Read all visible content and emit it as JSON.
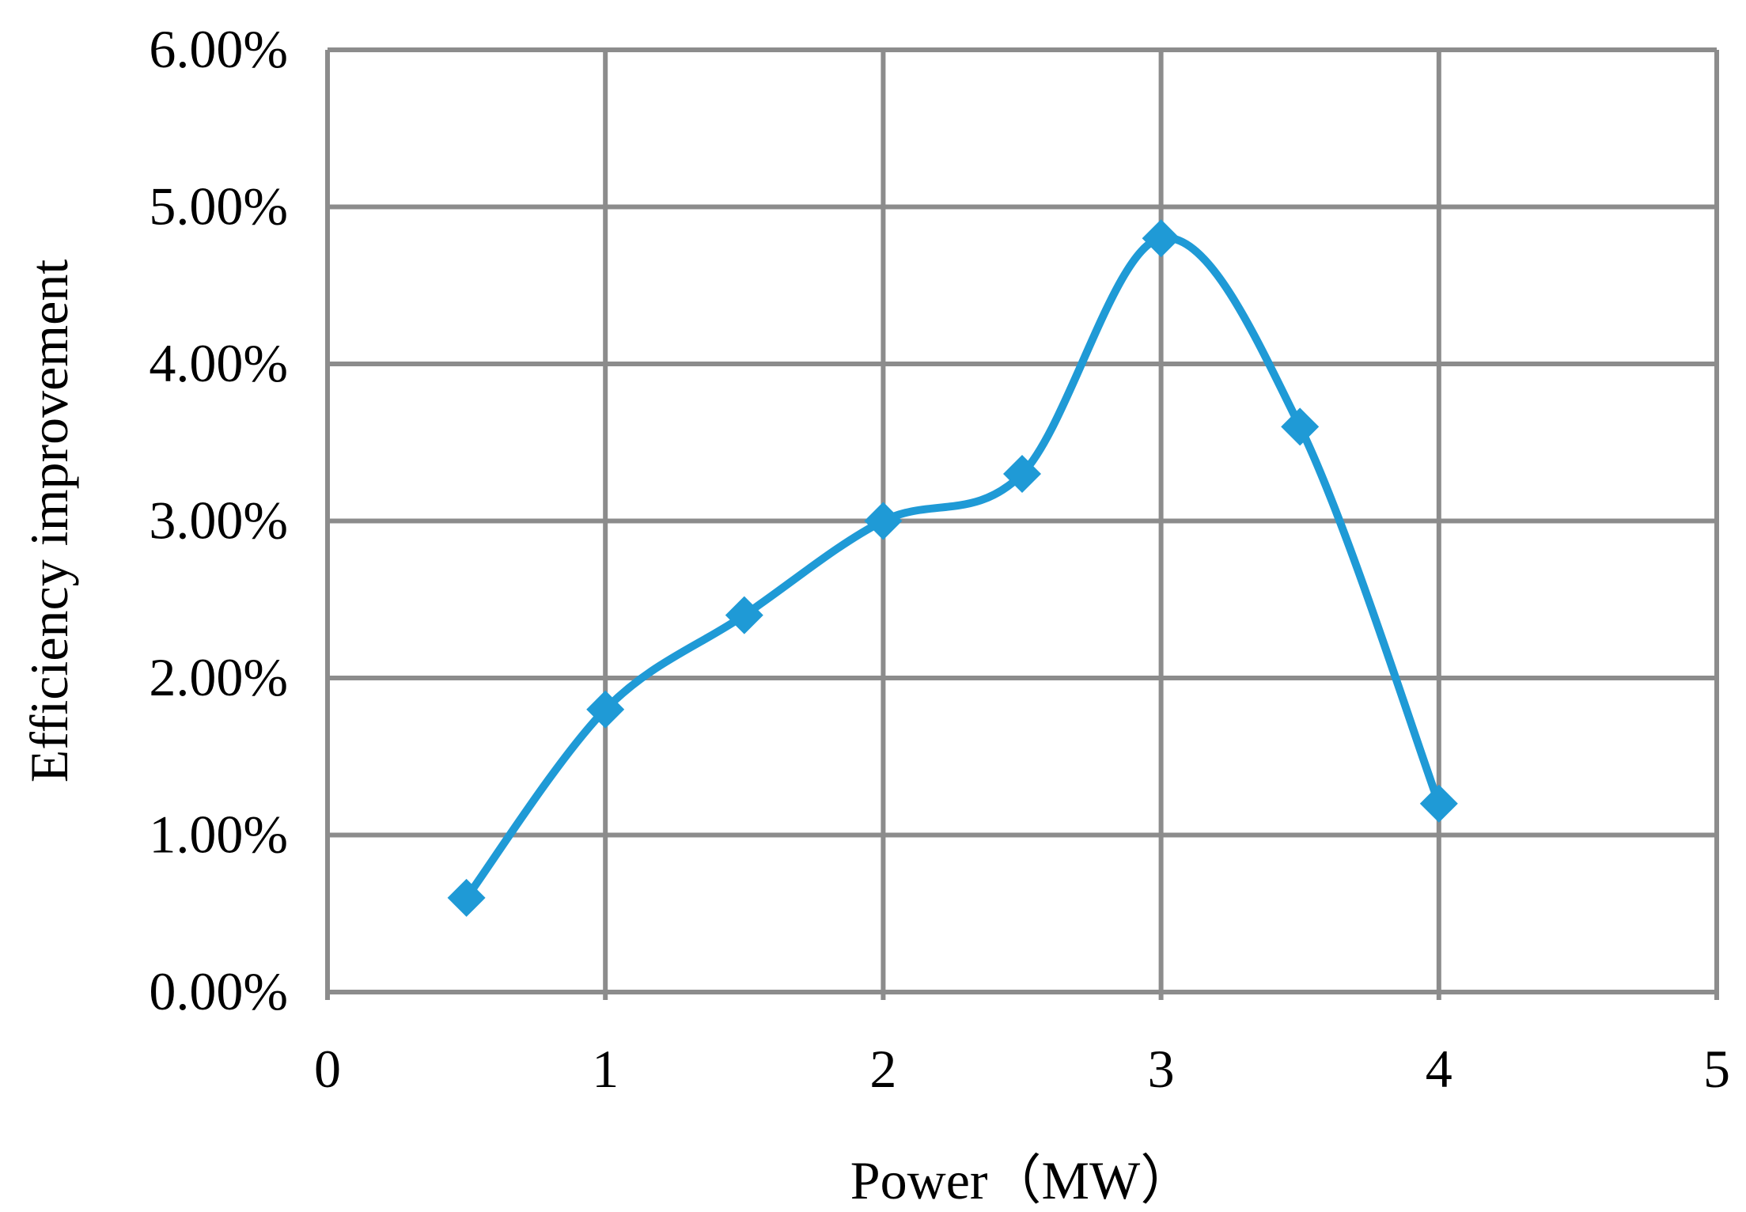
{
  "chart_data": {
    "type": "line",
    "title": "",
    "xlabel": "Power（MW）",
    "ylabel": "Efficiency improvement",
    "xlim": [
      0,
      5
    ],
    "ylim": [
      0,
      0.06
    ],
    "x_ticks": [
      "0",
      "1",
      "2",
      "3",
      "4",
      "5"
    ],
    "y_ticks": [
      "0.00%",
      "1.00%",
      "2.00%",
      "3.00%",
      "4.00%",
      "5.00%",
      "6.00%"
    ],
    "grid": true,
    "legend": "none",
    "smooth": true,
    "series": [
      {
        "color": "#1f9ad6",
        "marker": "diamond",
        "x": [
          0.5,
          1,
          1.5,
          2,
          2.5,
          3,
          3.5,
          4
        ],
        "y": [
          0.006,
          0.018,
          0.024,
          0.03,
          0.033,
          0.048,
          0.036,
          0.012
        ]
      }
    ],
    "colors": {
      "grid": "#8c8c8c",
      "line": "#1f9ad6"
    }
  }
}
